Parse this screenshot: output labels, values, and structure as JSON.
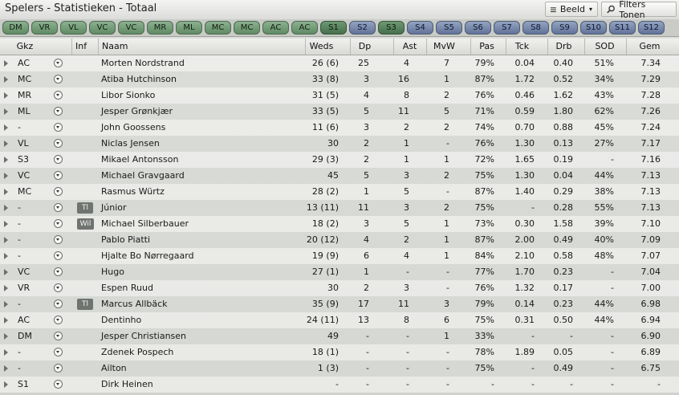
{
  "window": {
    "title": "Spelers - Statistieken - Totaal"
  },
  "toolbar": {
    "view_label": "Beeld",
    "filter_label": "Filters Tonen"
  },
  "position_tabs": [
    "DM",
    "VR",
    "VL",
    "VC",
    "VC",
    "MR",
    "ML",
    "MC",
    "MC",
    "AC",
    "AC",
    "S1",
    "S2",
    "S3",
    "S4",
    "S5",
    "S6",
    "S7",
    "S8",
    "S9",
    "S10",
    "S11",
    "S12"
  ],
  "table": {
    "headers": {
      "gkz": "Gkz",
      "inf": "Inf",
      "naam": "Naam",
      "weds": "Weds",
      "dp": "Dp",
      "ast": "Ast",
      "mvw": "MvW",
      "pas": "Pas",
      "tck": "Tck",
      "drb": "Drb",
      "sod": "SOD",
      "gem": "Gem"
    },
    "rows": [
      {
        "gkz": "AC",
        "inf": "",
        "naam": "Morten Nordstrand",
        "weds": "26 (6)",
        "dp": "25",
        "ast": "4",
        "mvw": "7",
        "pas": "79%",
        "tck": "0.04",
        "drb": "0.40",
        "sod": "51%",
        "gem": "7.34"
      },
      {
        "gkz": "MC",
        "inf": "",
        "naam": "Atiba Hutchinson",
        "weds": "33 (8)",
        "dp": "3",
        "ast": "16",
        "mvw": "1",
        "pas": "87%",
        "tck": "1.72",
        "drb": "0.52",
        "sod": "34%",
        "gem": "7.29"
      },
      {
        "gkz": "MR",
        "inf": "",
        "naam": "Libor Sionko",
        "weds": "31 (5)",
        "dp": "4",
        "ast": "8",
        "mvw": "2",
        "pas": "76%",
        "tck": "0.46",
        "drb": "1.62",
        "sod": "43%",
        "gem": "7.28"
      },
      {
        "gkz": "ML",
        "inf": "",
        "naam": "Jesper Grønkjær",
        "weds": "33 (5)",
        "dp": "5",
        "ast": "11",
        "mvw": "5",
        "pas": "71%",
        "tck": "0.59",
        "drb": "1.80",
        "sod": "62%",
        "gem": "7.26"
      },
      {
        "gkz": "-",
        "inf": "",
        "naam": "John Goossens",
        "weds": "11 (6)",
        "dp": "3",
        "ast": "2",
        "mvw": "2",
        "pas": "74%",
        "tck": "0.70",
        "drb": "0.88",
        "sod": "45%",
        "gem": "7.24"
      },
      {
        "gkz": "VL",
        "inf": "",
        "naam": "Niclas Jensen",
        "weds": "30",
        "dp": "2",
        "ast": "1",
        "mvw": "-",
        "pas": "76%",
        "tck": "1.30",
        "drb": "0.13",
        "sod": "27%",
        "gem": "7.17"
      },
      {
        "gkz": "S3",
        "inf": "",
        "naam": "Mikael Antonsson",
        "weds": "29 (3)",
        "dp": "2",
        "ast": "1",
        "mvw": "1",
        "pas": "72%",
        "tck": "1.65",
        "drb": "0.19",
        "sod": "-",
        "gem": "7.16"
      },
      {
        "gkz": "VC",
        "inf": "",
        "naam": "Michael Gravgaard",
        "weds": "45",
        "dp": "5",
        "ast": "3",
        "mvw": "2",
        "pas": "75%",
        "tck": "1.30",
        "drb": "0.04",
        "sod": "44%",
        "gem": "7.13"
      },
      {
        "gkz": "MC",
        "inf": "",
        "naam": "Rasmus Würtz",
        "weds": "28 (2)",
        "dp": "1",
        "ast": "5",
        "mvw": "-",
        "pas": "87%",
        "tck": "1.40",
        "drb": "0.29",
        "sod": "38%",
        "gem": "7.13"
      },
      {
        "gkz": "-",
        "inf": "Tl",
        "naam": "Júnior",
        "weds": "13 (11)",
        "dp": "11",
        "ast": "3",
        "mvw": "2",
        "pas": "75%",
        "tck": "-",
        "drb": "0.28",
        "sod": "55%",
        "gem": "7.13"
      },
      {
        "gkz": "-",
        "inf": "Wil",
        "naam": "Michael Silberbauer",
        "weds": "18 (2)",
        "dp": "3",
        "ast": "5",
        "mvw": "1",
        "pas": "73%",
        "tck": "0.30",
        "drb": "1.58",
        "sod": "39%",
        "gem": "7.10"
      },
      {
        "gkz": "-",
        "inf": "",
        "naam": "Pablo Piatti",
        "weds": "20 (12)",
        "dp": "4",
        "ast": "2",
        "mvw": "1",
        "pas": "87%",
        "tck": "2.00",
        "drb": "0.49",
        "sod": "40%",
        "gem": "7.09"
      },
      {
        "gkz": "-",
        "inf": "",
        "naam": "Hjalte Bo Nørregaard",
        "weds": "19 (9)",
        "dp": "6",
        "ast": "4",
        "mvw": "1",
        "pas": "84%",
        "tck": "2.10",
        "drb": "0.58",
        "sod": "48%",
        "gem": "7.07"
      },
      {
        "gkz": "VC",
        "inf": "",
        "naam": "Hugo",
        "weds": "27 (1)",
        "dp": "1",
        "ast": "-",
        "mvw": "-",
        "pas": "77%",
        "tck": "1.70",
        "drb": "0.23",
        "sod": "-",
        "gem": "7.04"
      },
      {
        "gkz": "VR",
        "inf": "",
        "naam": "Espen Ruud",
        "weds": "30",
        "dp": "2",
        "ast": "3",
        "mvw": "-",
        "pas": "76%",
        "tck": "1.32",
        "drb": "0.17",
        "sod": "-",
        "gem": "7.00"
      },
      {
        "gkz": "-",
        "inf": "Tl",
        "naam": "Marcus Allbäck",
        "weds": "35 (9)",
        "dp": "17",
        "ast": "11",
        "mvw": "3",
        "pas": "79%",
        "tck": "0.14",
        "drb": "0.23",
        "sod": "44%",
        "gem": "6.98"
      },
      {
        "gkz": "AC",
        "inf": "",
        "naam": "Dentinho",
        "weds": "24 (11)",
        "dp": "13",
        "ast": "8",
        "mvw": "6",
        "pas": "75%",
        "tck": "0.31",
        "drb": "0.50",
        "sod": "44%",
        "gem": "6.94"
      },
      {
        "gkz": "DM",
        "inf": "",
        "naam": "Jesper Christiansen",
        "weds": "49",
        "dp": "-",
        "ast": "-",
        "mvw": "1",
        "pas": "33%",
        "tck": "-",
        "drb": "-",
        "sod": "-",
        "gem": "6.90"
      },
      {
        "gkz": "-",
        "inf": "",
        "naam": "Zdenek Pospech",
        "weds": "18 (1)",
        "dp": "-",
        "ast": "-",
        "mvw": "-",
        "pas": "78%",
        "tck": "1.89",
        "drb": "0.05",
        "sod": "-",
        "gem": "6.89"
      },
      {
        "gkz": "-",
        "inf": "",
        "naam": "Ailton",
        "weds": "1 (3)",
        "dp": "-",
        "ast": "-",
        "mvw": "-",
        "pas": "75%",
        "tck": "-",
        "drb": "0.49",
        "sod": "-",
        "gem": "6.75"
      },
      {
        "gkz": "S1",
        "inf": "",
        "naam": "Dirk Heinen",
        "weds": "-",
        "dp": "-",
        "ast": "-",
        "mvw": "-",
        "pas": "-",
        "tck": "-",
        "drb": "-",
        "sod": "-",
        "gem": "-"
      }
    ]
  }
}
